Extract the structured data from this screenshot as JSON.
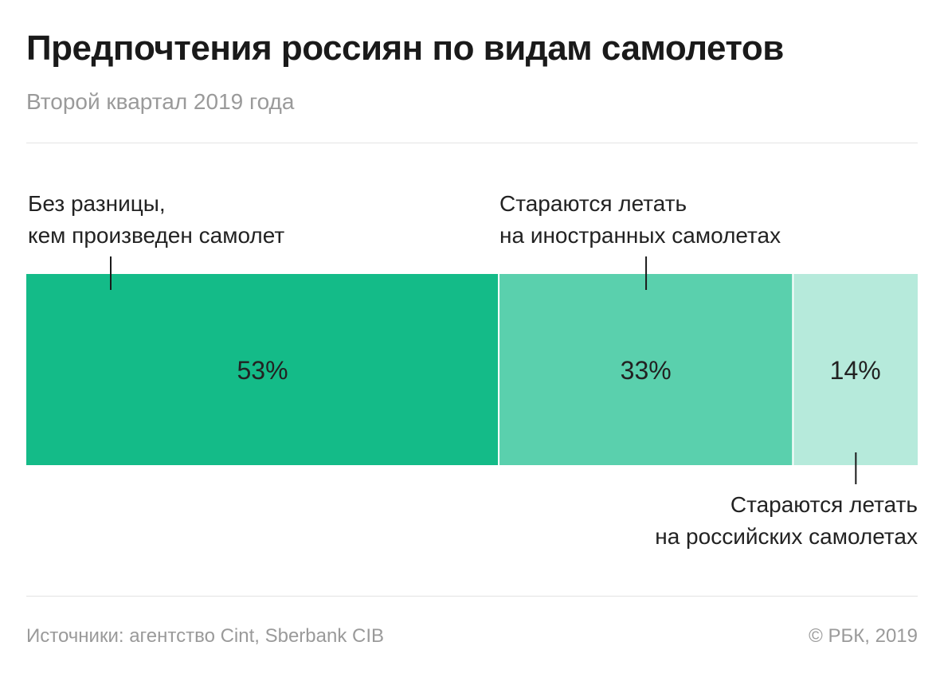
{
  "chart_data": {
    "type": "bar",
    "layout": "stacked-100-horizontal",
    "title": "Предпочтения россиян по видам самолетов",
    "subtitle": "Второй квартал 2019 года",
    "series": [
      {
        "name": "Без разницы, кем произведен самолет",
        "label_lines": [
          "Без разницы,",
          "кем произведен самолет"
        ],
        "value": 53,
        "value_label": "53%",
        "color": "#14bb88"
      },
      {
        "name": "Стараются летать на иностранных самолетах",
        "label_lines": [
          "Стараются летать",
          "на иностранных самолетах"
        ],
        "value": 33,
        "value_label": "33%",
        "color": "#5ad0ad"
      },
      {
        "name": "Стараются летать на российских самолетах",
        "label_lines": [
          "Стараются летать",
          "на российских самолетах"
        ],
        "value": 14,
        "value_label": "14%",
        "color": "#b6eadb"
      }
    ],
    "unit": "%",
    "total": 100
  },
  "footer": {
    "source": "Источники: агентство Cint, Sberbank CIB",
    "copyright": "© РБК, 2019"
  }
}
